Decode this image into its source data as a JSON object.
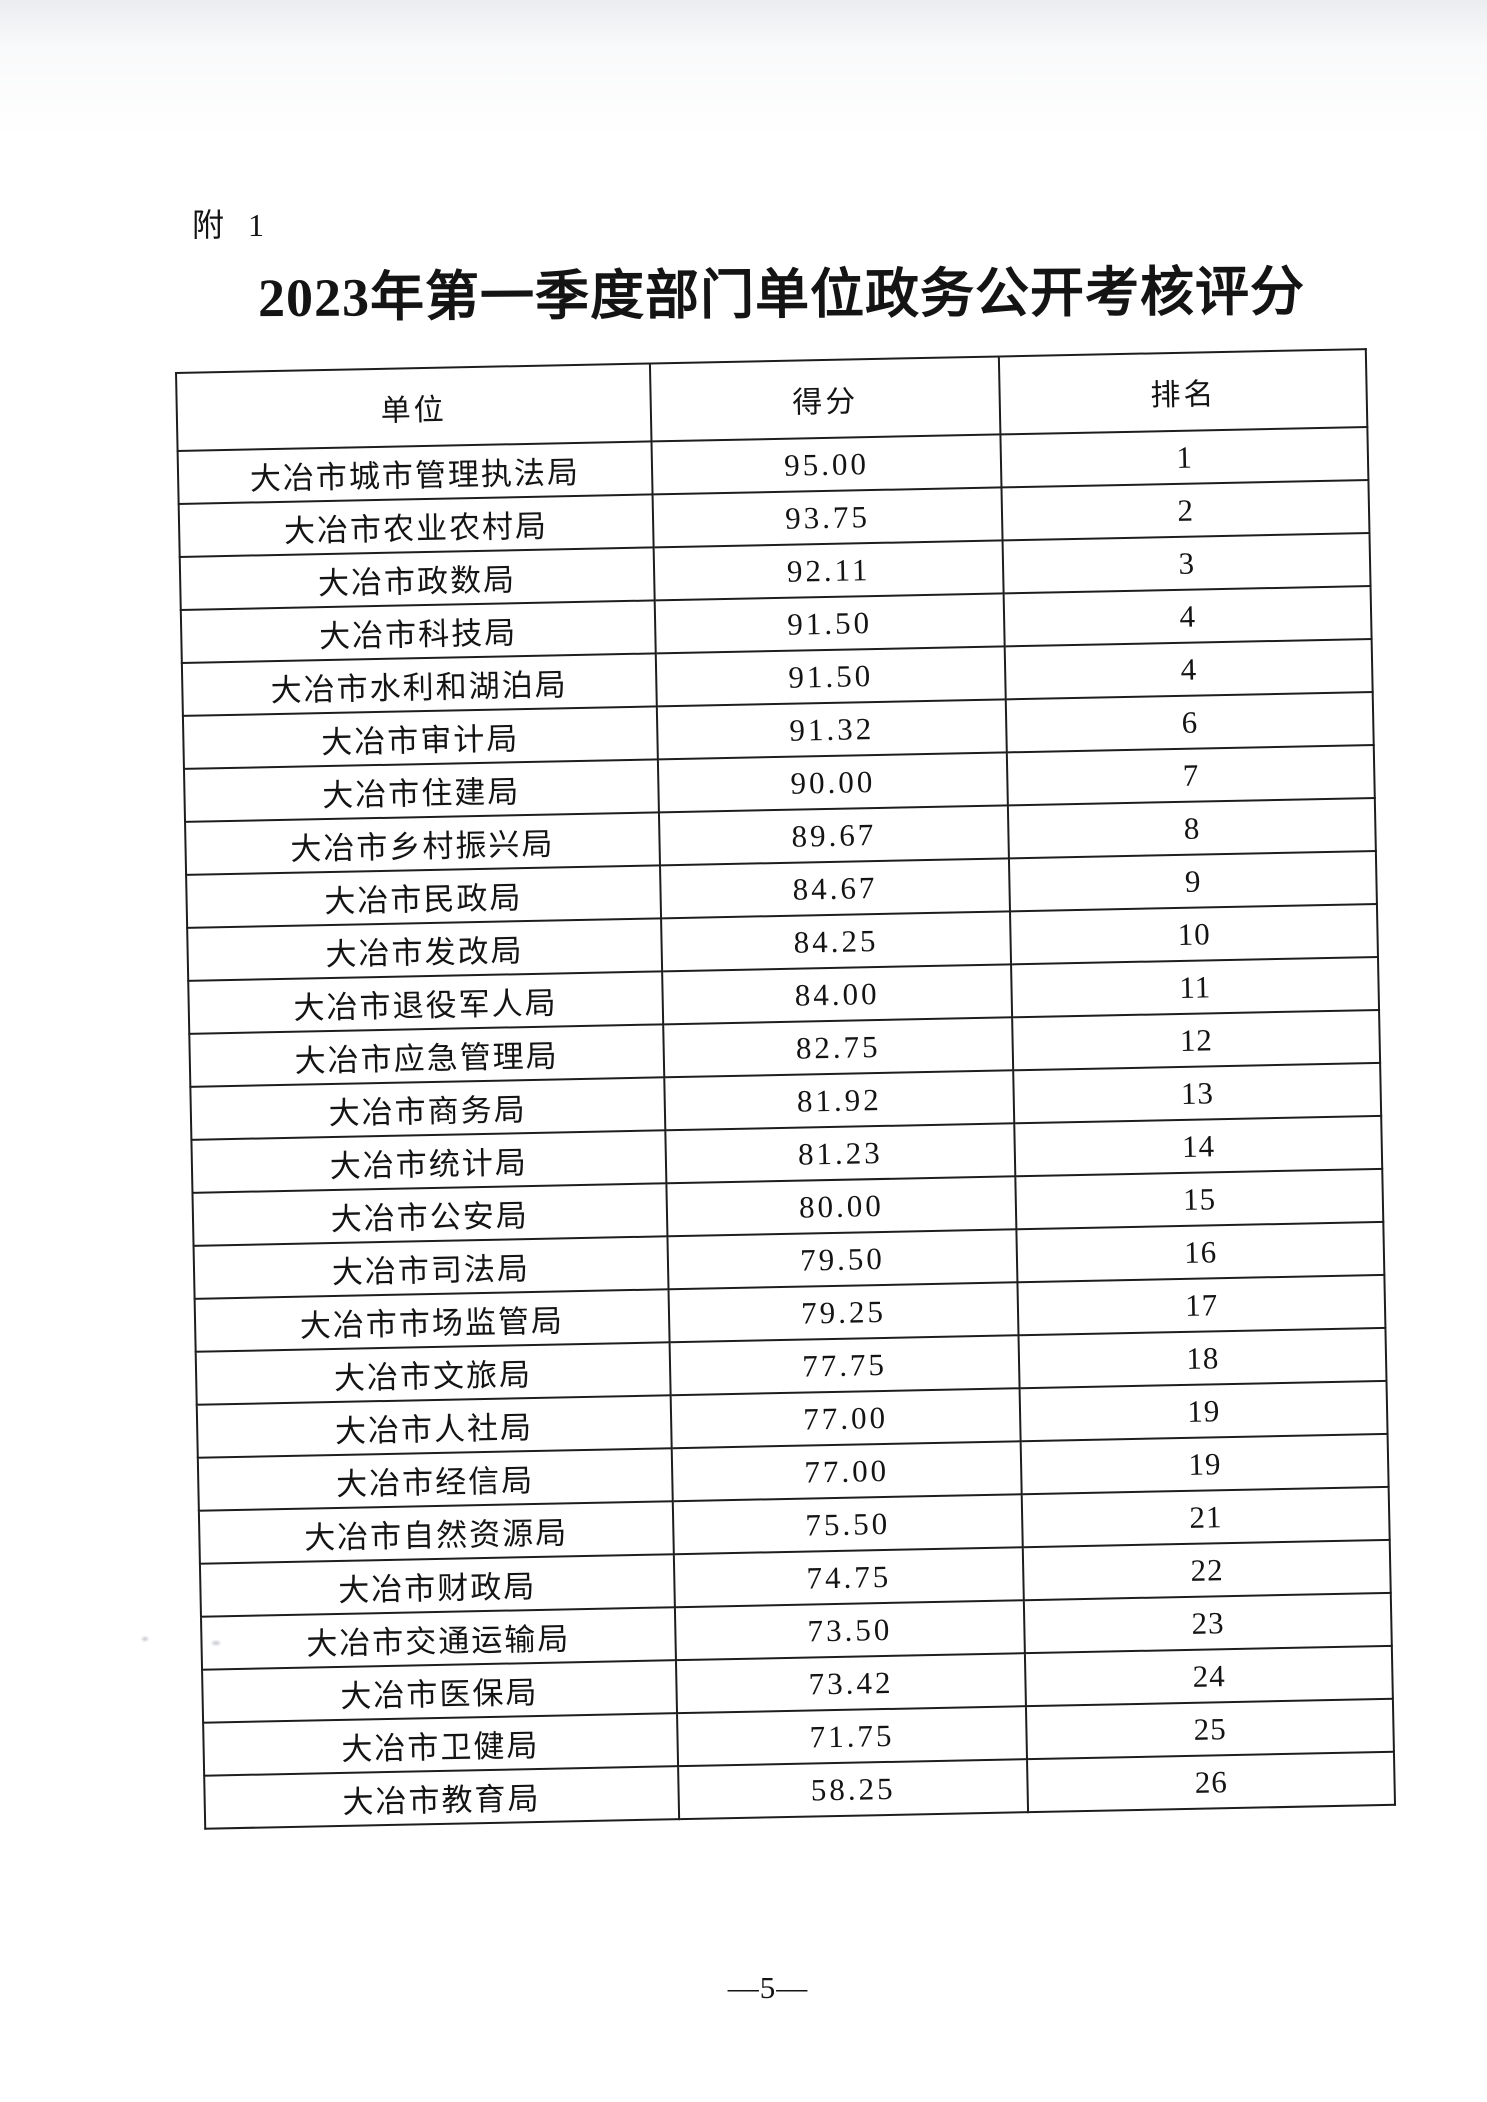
{
  "page": {
    "attachment_label": "附 1",
    "title": "2023年第一季度部门单位政务公开考核评分",
    "page_number": "—5—"
  },
  "table": {
    "headers": [
      "单位",
      "得分",
      "排名"
    ],
    "rows": [
      {
        "unit": "大冶市城市管理执法局",
        "score": "95.00",
        "rank": "1"
      },
      {
        "unit": "大冶市农业农村局",
        "score": "93.75",
        "rank": "2"
      },
      {
        "unit": "大冶市政数局",
        "score": "92.11",
        "rank": "3"
      },
      {
        "unit": "大冶市科技局",
        "score": "91.50",
        "rank": "4"
      },
      {
        "unit": "大冶市水利和湖泊局",
        "score": "91.50",
        "rank": "4"
      },
      {
        "unit": "大冶市审计局",
        "score": "91.32",
        "rank": "6"
      },
      {
        "unit": "大冶市住建局",
        "score": "90.00",
        "rank": "7"
      },
      {
        "unit": "大冶市乡村振兴局",
        "score": "89.67",
        "rank": "8"
      },
      {
        "unit": "大冶市民政局",
        "score": "84.67",
        "rank": "9"
      },
      {
        "unit": "大冶市发改局",
        "score": "84.25",
        "rank": "10"
      },
      {
        "unit": "大冶市退役军人局",
        "score": "84.00",
        "rank": "11"
      },
      {
        "unit": "大冶市应急管理局",
        "score": "82.75",
        "rank": "12"
      },
      {
        "unit": "大冶市商务局",
        "score": "81.92",
        "rank": "13"
      },
      {
        "unit": "大冶市统计局",
        "score": "81.23",
        "rank": "14"
      },
      {
        "unit": "大冶市公安局",
        "score": "80.00",
        "rank": "15"
      },
      {
        "unit": "大冶市司法局",
        "score": "79.50",
        "rank": "16"
      },
      {
        "unit": "大冶市市场监管局",
        "score": "79.25",
        "rank": "17"
      },
      {
        "unit": "大冶市文旅局",
        "score": "77.75",
        "rank": "18"
      },
      {
        "unit": "大冶市人社局",
        "score": "77.00",
        "rank": "19"
      },
      {
        "unit": "大冶市经信局",
        "score": "77.00",
        "rank": "19"
      },
      {
        "unit": "大冶市自然资源局",
        "score": "75.50",
        "rank": "21"
      },
      {
        "unit": "大冶市财政局",
        "score": "74.75",
        "rank": "22"
      },
      {
        "unit": "大冶市交通运输局",
        "score": "73.50",
        "rank": "23"
      },
      {
        "unit": "大冶市医保局",
        "score": "73.42",
        "rank": "24"
      },
      {
        "unit": "大冶市卫健局",
        "score": "71.75",
        "rank": "25"
      },
      {
        "unit": "大冶市教育局",
        "score": "58.25",
        "rank": "26"
      }
    ]
  }
}
